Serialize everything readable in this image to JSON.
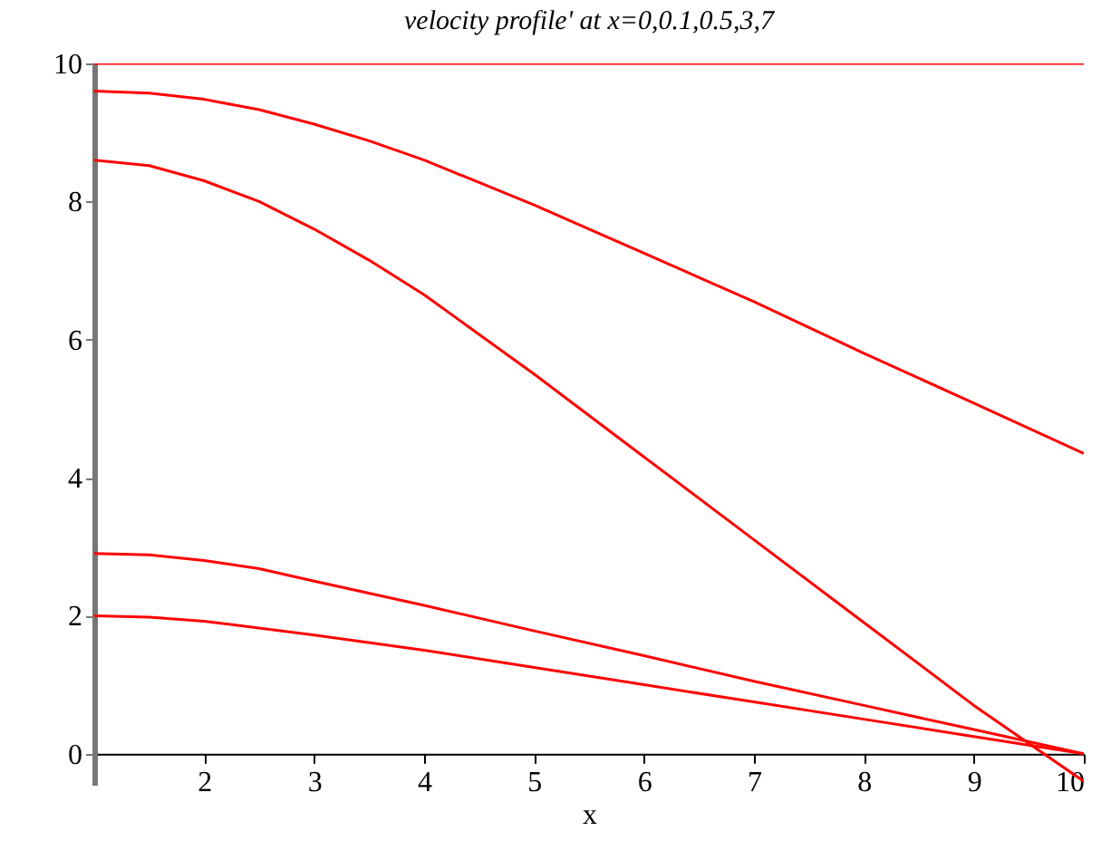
{
  "chart_data": {
    "type": "line",
    "title": "velocity profile' at x=0,0.1,0.5,3,7",
    "xlabel": "x",
    "xlim": [
      1,
      10
    ],
    "ylim": [
      -0.45,
      10
    ],
    "xticks": [
      2,
      3,
      4,
      5,
      6,
      7,
      8,
      9,
      10
    ],
    "yticks": [
      0,
      2,
      4,
      6,
      8,
      10
    ],
    "grid": false,
    "legend": false,
    "marker": "none",
    "line_style": "solid",
    "series": [
      {
        "color": "#ff0000",
        "x": [
          1,
          10
        ],
        "values": [
          10,
          10
        ]
      },
      {
        "color": "#ff0000",
        "x": [
          1,
          1.5,
          2,
          2.5,
          3,
          3.5,
          4,
          5,
          6,
          7,
          8,
          9,
          10
        ],
        "values": [
          9.6,
          9.57,
          9.48,
          9.33,
          9.12,
          8.88,
          8.6,
          7.95,
          7.25,
          6.55,
          5.8,
          5.08,
          4.35
        ]
      },
      {
        "color": "#ff0000",
        "x": [
          1,
          1.5,
          2,
          2.5,
          3,
          3.5,
          4,
          5,
          6,
          7,
          8,
          9,
          10
        ],
        "values": [
          8.6,
          8.52,
          8.3,
          8.0,
          7.6,
          7.15,
          6.65,
          5.5,
          4.3,
          3.1,
          1.9,
          0.7,
          -0.4
        ]
      },
      {
        "color": "#ff0000",
        "x": [
          1,
          1.5,
          2,
          2.5,
          3,
          4,
          5,
          6,
          7,
          8,
          9,
          10
        ],
        "values": [
          2.9,
          2.88,
          2.8,
          2.68,
          2.5,
          2.15,
          1.78,
          1.42,
          1.05,
          0.7,
          0.35,
          0
        ]
      },
      {
        "color": "#ff0000",
        "x": [
          1,
          1.5,
          2,
          3,
          4,
          5,
          6,
          7,
          8,
          9,
          10
        ],
        "values": [
          2.0,
          1.98,
          1.92,
          1.72,
          1.5,
          1.25,
          1.0,
          0.75,
          0.5,
          0.25,
          0
        ]
      }
    ]
  }
}
